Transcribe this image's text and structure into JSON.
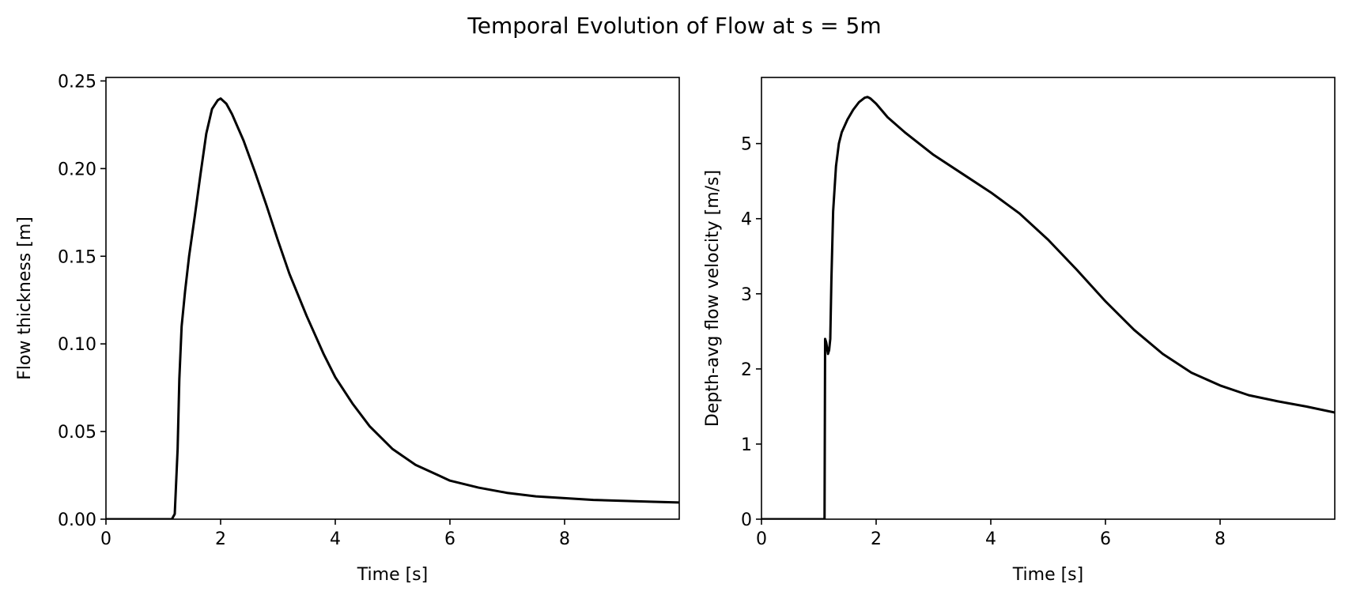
{
  "figure_title": "Temporal Evolution of Flow at s = 5m",
  "colors": {
    "line": "#000000",
    "axes": "#000000",
    "background": "#ffffff"
  },
  "chart_data": [
    {
      "type": "line",
      "xlabel": "Time [s]",
      "ylabel": "Flow thickness [m]",
      "xlim": [
        0,
        10
      ],
      "ylim": [
        0,
        0.252
      ],
      "xticks": [
        0,
        2,
        4,
        6,
        8
      ],
      "xtick_labels": [
        "0",
        "2",
        "4",
        "6",
        "8"
      ],
      "yticks": [
        0,
        0.05,
        0.1,
        0.15,
        0.2,
        0.25
      ],
      "ytick_labels": [
        "0.00",
        "0.05",
        "0.10",
        "0.15",
        "0.20",
        "0.25"
      ],
      "grid": false,
      "series": [
        {
          "x": [
            0,
            1.15,
            1.2,
            1.25,
            1.28,
            1.32,
            1.38,
            1.45,
            1.55,
            1.65,
            1.75,
            1.85,
            1.95,
            2.0,
            2.1,
            2.2,
            2.4,
            2.6,
            2.8,
            3.0,
            3.2,
            3.5,
            3.8,
            4.0,
            4.3,
            4.6,
            5.0,
            5.4,
            5.8,
            6.0,
            6.5,
            7.0,
            7.5,
            8.0,
            8.5,
            9.0,
            9.5,
            10.0
          ],
          "y": [
            0,
            0,
            0.003,
            0.04,
            0.08,
            0.11,
            0.13,
            0.15,
            0.173,
            0.197,
            0.22,
            0.234,
            0.239,
            0.24,
            0.237,
            0.231,
            0.216,
            0.198,
            0.179,
            0.159,
            0.14,
            0.116,
            0.094,
            0.081,
            0.066,
            0.053,
            0.04,
            0.031,
            0.025,
            0.022,
            0.018,
            0.015,
            0.013,
            0.012,
            0.011,
            0.0105,
            0.01,
            0.0095
          ]
        }
      ]
    },
    {
      "type": "line",
      "xlabel": "Time [s]",
      "ylabel": "Depth-avg flow velocity [m/s]",
      "xlim": [
        0,
        10
      ],
      "ylim": [
        0,
        5.88
      ],
      "xticks": [
        0,
        2,
        4,
        6,
        8
      ],
      "xtick_labels": [
        "0",
        "2",
        "4",
        "6",
        "8"
      ],
      "yticks": [
        0,
        1,
        2,
        3,
        4,
        5
      ],
      "ytick_labels": [
        "0",
        "1",
        "2",
        "3",
        "4",
        "5"
      ],
      "grid": false,
      "series": [
        {
          "x": [
            0,
            1.1,
            1.11,
            1.13,
            1.16,
            1.18,
            1.2,
            1.22,
            1.25,
            1.3,
            1.35,
            1.4,
            1.5,
            1.6,
            1.7,
            1.8,
            1.85,
            1.9,
            2.0,
            2.2,
            2.5,
            3.0,
            3.5,
            4.0,
            4.5,
            5.0,
            5.5,
            6.0,
            6.5,
            7.0,
            7.5,
            8.0,
            8.5,
            9.0,
            9.5,
            10.0
          ],
          "y": [
            0,
            0,
            2.4,
            2.35,
            2.2,
            2.25,
            2.4,
            3.2,
            4.1,
            4.7,
            5.0,
            5.15,
            5.32,
            5.45,
            5.55,
            5.61,
            5.62,
            5.6,
            5.53,
            5.35,
            5.15,
            4.85,
            4.6,
            4.35,
            4.07,
            3.72,
            3.32,
            2.9,
            2.52,
            2.2,
            1.95,
            1.78,
            1.65,
            1.57,
            1.5,
            1.42
          ]
        }
      ]
    }
  ]
}
